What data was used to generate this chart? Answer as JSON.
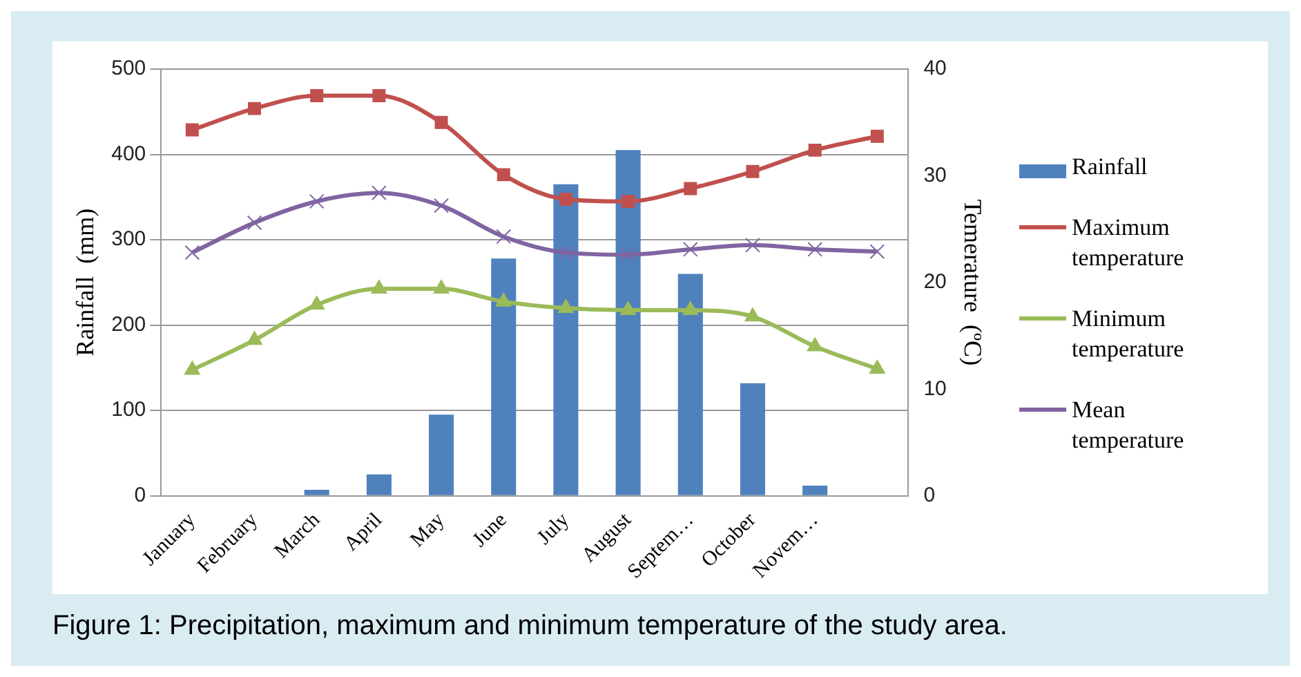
{
  "chart_data": {
    "type": "bar",
    "title": "Figure 1: Precipitation, maximum and minimum temperature of the study area.",
    "ylabel": "Rainfall  (mm)",
    "y2label": "Temerature  (ºC)",
    "categories": [
      "January",
      "February",
      "March",
      "April",
      "May",
      "June",
      "July",
      "August",
      "Septem…",
      "October",
      "Novem…",
      null
    ],
    "series": [
      {
        "name": "Rainfall",
        "color": "#4f81bd",
        "values": [
          0,
          0,
          7,
          25,
          95,
          278,
          365,
          405,
          260,
          132,
          12,
          0
        ]
      },
      {
        "name": "Maximum temperature",
        "type": "line",
        "axis": "y2",
        "marker": "square",
        "color": "#c0504d",
        "values": [
          34.3,
          36.3,
          37.5,
          37.5,
          35,
          30.1,
          27.8,
          27.6,
          28.8,
          30.4,
          32.4,
          33.7
        ]
      },
      {
        "name": "Minimum temperature",
        "type": "line",
        "axis": "y2",
        "marker": "triangle",
        "color": "#9bbb59",
        "values": [
          11.8,
          14.6,
          17.9,
          19.4,
          19.4,
          18.2,
          17.6,
          17.4,
          17.4,
          16.8,
          14,
          11.9
        ]
      },
      {
        "name": "Mean temperature",
        "type": "line",
        "axis": "y2",
        "marker": "cross",
        "color": "#8064a2",
        "values": [
          22.8,
          25.6,
          27.6,
          28.4,
          27.2,
          24.3,
          22.8,
          22.6,
          23.1,
          23.5,
          23.1,
          22.9
        ]
      }
    ],
    "ylim": [
      0,
      500
    ],
    "yticks": [
      0,
      100,
      200,
      300,
      400,
      500
    ],
    "y2lim": [
      0,
      40
    ],
    "y2ticks": [
      0,
      10,
      20,
      30,
      40
    ],
    "grid": "y",
    "legend": "right"
  }
}
